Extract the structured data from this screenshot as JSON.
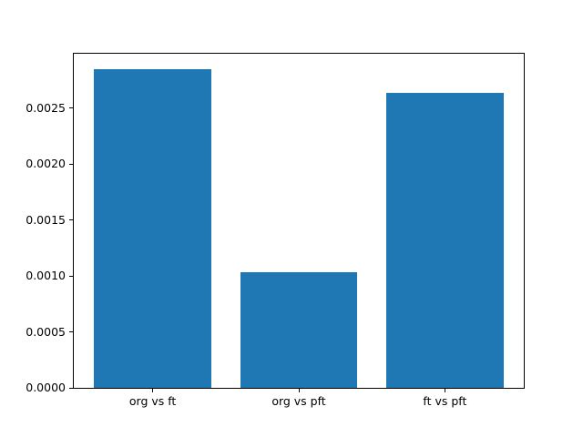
{
  "chart_data": {
    "type": "bar",
    "categories": [
      "org vs ft",
      "org vs pft",
      "ft vs pft"
    ],
    "values": [
      0.002845,
      0.001037,
      0.002636
    ],
    "title": "",
    "xlabel": "",
    "ylabel": "",
    "xlim": [
      -0.54,
      2.54
    ],
    "ylim": [
      0,
      0.002987
    ],
    "bar_width": 0.8,
    "yticks": [
      0.0,
      0.0005,
      0.001,
      0.0015,
      0.002,
      0.0025
    ],
    "ytick_labels": [
      "0.0000",
      "0.0005",
      "0.0010",
      "0.0015",
      "0.0020",
      "0.0025"
    ],
    "bar_color": "#1f77b4",
    "spine_color": "#000000",
    "background_color": "#ffffff",
    "grid": false,
    "legend": null
  }
}
